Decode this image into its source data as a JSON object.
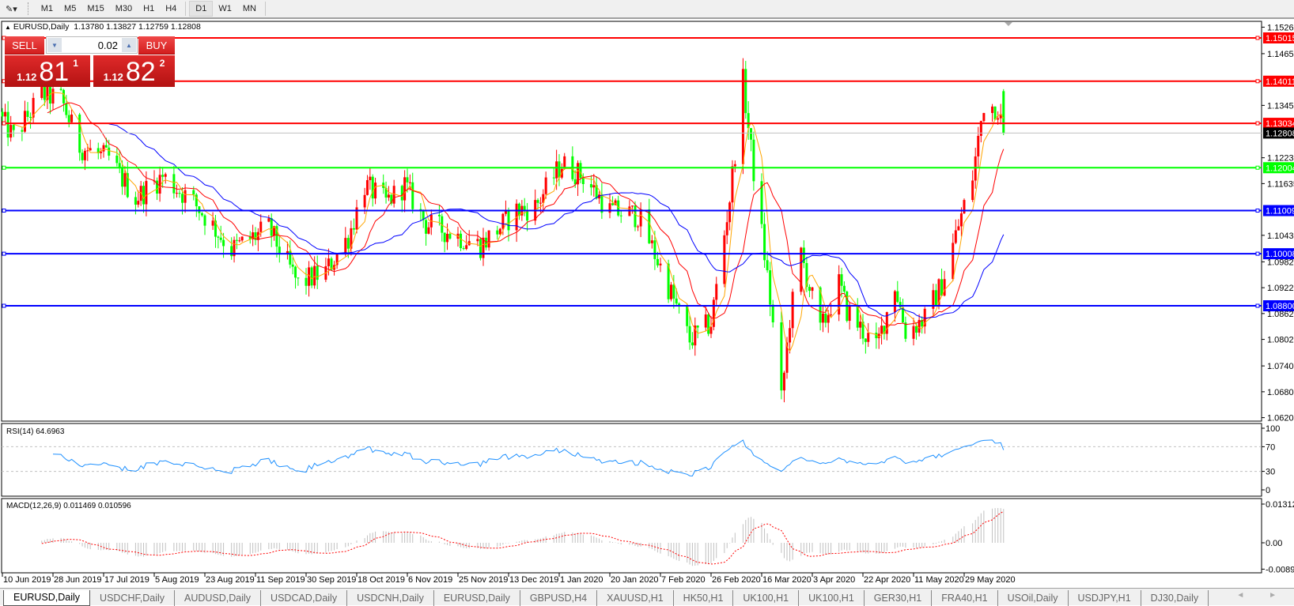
{
  "toolbar": {
    "tool_icon": "crosshair-tools-icon",
    "timeframes": [
      "M1",
      "M5",
      "M15",
      "M30",
      "H1",
      "H4",
      "D1",
      "W1",
      "MN"
    ],
    "active_timeframe": "D1"
  },
  "chart_header": {
    "arrow": "▲",
    "symbol": "EURUSD,Daily",
    "ohlc": "1.13780 1.13827 1.12759 1.12808"
  },
  "trade_panel": {
    "sell_label": "SELL",
    "buy_label": "BUY",
    "lots": "0.02",
    "sell_price": {
      "prefix": "1.12",
      "big": "81",
      "sup": "1"
    },
    "buy_price": {
      "prefix": "1.12",
      "big": "82",
      "sup": "2"
    }
  },
  "indicators": {
    "rsi_label": "RSI(14) 64.6963",
    "macd_label": "MACD(12,26,9) 0.011469 0.010596"
  },
  "colors": {
    "bull": "#ff0000",
    "bear": "#00ff00",
    "ma_fast": "#ffa500",
    "ma_mid": "#ff0000",
    "ma_slow": "#0000ff",
    "rsi": "#1e90ff",
    "macd_hist": "#c0c0c0",
    "macd_signal": "#ff0000"
  },
  "chart_data": [
    {
      "type": "candlestick",
      "title": "EURUSD,Daily",
      "x_tick_labels": [
        "10 Jun 2019",
        "28 Jun 2019",
        "17 Jul 2019",
        "5 Aug 2019",
        "23 Aug 2019",
        "11 Sep 2019",
        "30 Sep 2019",
        "18 Oct 2019",
        "6 Nov 2019",
        "25 Nov 2019",
        "13 Dec 2019",
        "1 Jan 2020",
        "20 Jan 2020",
        "7 Feb 2020",
        "26 Feb 2020",
        "16 Mar 2020",
        "3 Apr 2020",
        "22 Apr 2020",
        "11 May 2020",
        "29 May 2020"
      ],
      "x_tick_dates": [
        "2019-06-10",
        "2019-06-28",
        "2019-07-17",
        "2019-08-05",
        "2019-08-23",
        "2019-09-11",
        "2019-09-30",
        "2019-10-18",
        "2019-11-06",
        "2019-11-25",
        "2019-12-13",
        "2020-01-01",
        "2020-01-20",
        "2020-02-07",
        "2020-02-26",
        "2020-03-16",
        "2020-04-03",
        "2020-04-22",
        "2020-05-11",
        "2020-05-29"
      ],
      "y_tick_labels": [
        "1.15265",
        "1.14650",
        "1.13450",
        "1.12235",
        "1.11635",
        "1.10435",
        "1.09820",
        "1.09220",
        "1.08620",
        "1.08020",
        "1.07405",
        "1.06805",
        "1.06205"
      ],
      "ylim": [
        1.06205,
        1.15265
      ],
      "approx_close": [
        {
          "date": "2019-06-10",
          "close": 1.131
        },
        {
          "date": "2019-06-14",
          "close": 1.127
        },
        {
          "date": "2019-06-24",
          "close": 1.137
        },
        {
          "date": "2019-07-01",
          "close": 1.136
        },
        {
          "date": "2019-07-08",
          "close": 1.125
        },
        {
          "date": "2019-07-19",
          "close": 1.122
        },
        {
          "date": "2019-07-29",
          "close": 1.113
        },
        {
          "date": "2019-08-08",
          "close": 1.118
        },
        {
          "date": "2019-08-19",
          "close": 1.112
        },
        {
          "date": "2019-09-02",
          "close": 1.101
        },
        {
          "date": "2019-09-16",
          "close": 1.106
        },
        {
          "date": "2019-09-27",
          "close": 1.093
        },
        {
          "date": "2019-10-07",
          "close": 1.096
        },
        {
          "date": "2019-10-15",
          "close": 1.104
        },
        {
          "date": "2019-10-21",
          "close": 1.116
        },
        {
          "date": "2019-10-29",
          "close": 1.112
        },
        {
          "date": "2019-11-05",
          "close": 1.116
        },
        {
          "date": "2019-11-13",
          "close": 1.107
        },
        {
          "date": "2019-11-22",
          "close": 1.105
        },
        {
          "date": "2019-12-03",
          "close": 1.102
        },
        {
          "date": "2019-12-16",
          "close": 1.11
        },
        {
          "date": "2019-12-23",
          "close": 1.111
        },
        {
          "date": "2020-01-02",
          "close": 1.121
        },
        {
          "date": "2020-01-10",
          "close": 1.118
        },
        {
          "date": "2020-01-20",
          "close": 1.11
        },
        {
          "date": "2020-01-30",
          "close": 1.109
        },
        {
          "date": "2020-02-07",
          "close": 1.097
        },
        {
          "date": "2020-02-18",
          "close": 1.08
        },
        {
          "date": "2020-02-26",
          "close": 1.084
        },
        {
          "date": "2020-03-04",
          "close": 1.113
        },
        {
          "date": "2020-03-09",
          "close": 1.14
        },
        {
          "date": "2020-03-12",
          "close": 1.124
        },
        {
          "date": "2020-03-18",
          "close": 1.095
        },
        {
          "date": "2020-03-23",
          "close": 1.066
        },
        {
          "date": "2020-03-26",
          "close": 1.085
        },
        {
          "date": "2020-03-30",
          "close": 1.1
        },
        {
          "date": "2020-04-06",
          "close": 1.082
        },
        {
          "date": "2020-04-13",
          "close": 1.093
        },
        {
          "date": "2020-04-16",
          "close": 1.087
        },
        {
          "date": "2020-04-27",
          "close": 1.078
        },
        {
          "date": "2020-05-04",
          "close": 1.093
        },
        {
          "date": "2020-05-08",
          "close": 1.082
        },
        {
          "date": "2020-05-15",
          "close": 1.085
        },
        {
          "date": "2020-05-21",
          "close": 1.093
        },
        {
          "date": "2020-06-01",
          "close": 1.118
        },
        {
          "date": "2020-06-05",
          "close": 1.135
        },
        {
          "date": "2020-06-10",
          "close": 1.134
        },
        {
          "date": "2020-06-12",
          "close": 1.12808
        }
      ],
      "last_bar": {
        "open": 1.1378,
        "high": 1.13827,
        "low": 1.12759,
        "close": 1.12808
      },
      "moving_averages": [
        "fast (orange)",
        "mid (red)",
        "slow (blue)"
      ],
      "horizontal_levels": [
        {
          "price": "1.15015",
          "color": "#ff0000"
        },
        {
          "price": "1.14011",
          "color": "#ff0000"
        },
        {
          "price": "1.13034",
          "color": "#ff0000"
        },
        {
          "price": "1.12808",
          "color": "#000000",
          "line": "#c0c0c0",
          "current": true
        },
        {
          "price": "1.12004",
          "color": "#00ff00"
        },
        {
          "price": "1.11009",
          "color": "#0000ff"
        },
        {
          "price": "1.10008",
          "color": "#0000ff"
        },
        {
          "price": "1.08800",
          "color": "#0000ff"
        }
      ]
    },
    {
      "type": "line",
      "title": "RSI(14) 64.6963",
      "ylim": [
        0,
        100
      ],
      "y_tick_labels": [
        "100",
        "70",
        "30",
        "0"
      ],
      "levels": [
        70,
        30
      ],
      "last_value": 64.6963
    },
    {
      "type": "bar",
      "title": "MACD(12,26,9) 0.011469 0.010596",
      "ylim": [
        -0.00893,
        0.013121
      ],
      "y_tick_labels": [
        "0.013121",
        "0.00",
        "-0.00893"
      ],
      "last_macd": 0.011469,
      "last_signal": 0.010596
    }
  ],
  "tabs": [
    {
      "label": "EURUSD,Daily",
      "active": true
    },
    {
      "label": "USDCHF,Daily"
    },
    {
      "label": "AUDUSD,Daily"
    },
    {
      "label": "USDCAD,Daily"
    },
    {
      "label": "USDCNH,Daily"
    },
    {
      "label": "EURUSD,Daily"
    },
    {
      "label": "GBPUSD,H4"
    },
    {
      "label": "XAUUSD,H1"
    },
    {
      "label": "HK50,H1"
    },
    {
      "label": "UK100,H1"
    },
    {
      "label": "UK100,H1"
    },
    {
      "label": "GER30,H1"
    },
    {
      "label": "FRA40,H1"
    },
    {
      "label": "USOil,Daily"
    },
    {
      "label": "USDJPY,H1"
    },
    {
      "label": "DJ30,Daily"
    }
  ],
  "tab_scroll": "◄ ►"
}
